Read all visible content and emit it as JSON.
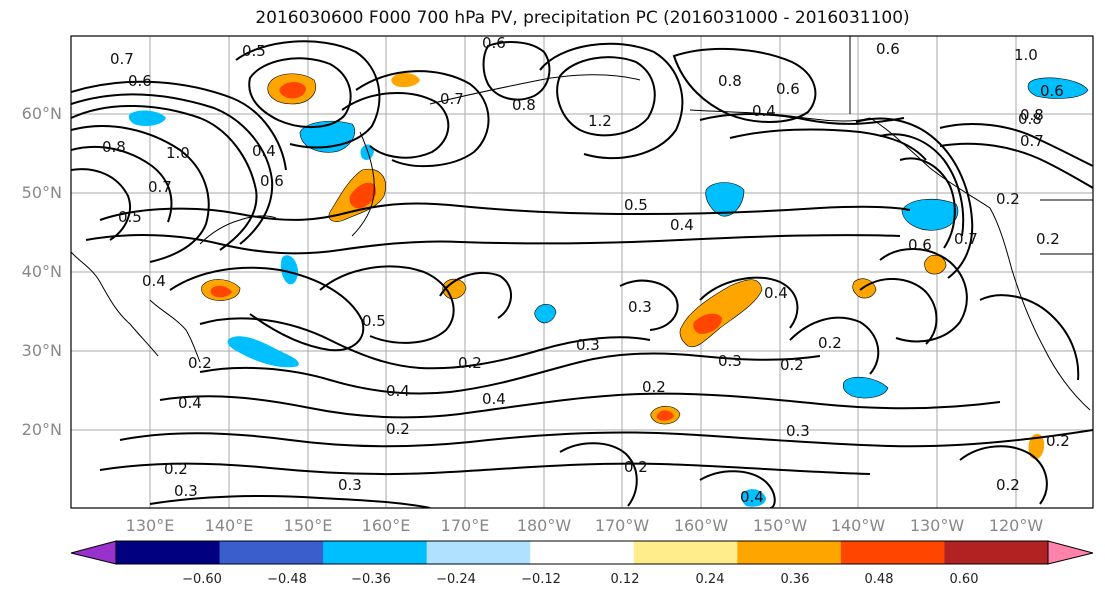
{
  "title": "2016030600 F000 700 hPa PV, precipitation PC (2016031000 - 2016031100)",
  "lat_labels": [
    "60°N",
    "50°N",
    "40°N",
    "30°N",
    "20°N"
  ],
  "lon_labels": [
    "130°E",
    "140°E",
    "150°E",
    "160°E",
    "170°E",
    "180°W",
    "170°W",
    "160°W",
    "150°W",
    "140°W",
    "130°W",
    "120°W"
  ],
  "colorbar": {
    "ticks": [
      "−0.60",
      "−0.48",
      "−0.36",
      "−0.24",
      "−0.12",
      "0.12",
      "0.24",
      "0.36",
      "0.48",
      "0.60"
    ],
    "colors": [
      "#9932cc",
      "#000080",
      "#3a5fcd",
      "#00bfff",
      "#b0e2ff",
      "#ffffff",
      "#ffec8b",
      "#ffa500",
      "#ff4500",
      "#b22222",
      "#ff82ab"
    ]
  },
  "contour_labels": [
    "0.7",
    "0.6",
    "0.5",
    "0.6",
    "0.8",
    "1.2",
    "0.8",
    "0.4",
    "0.6",
    "1.0",
    "0.8",
    "1.0",
    "0.6",
    "0.8",
    "0.7",
    "0.4",
    "0.7",
    "0.6",
    "0.5",
    "0.5",
    "0.4",
    "0.4",
    "0.5",
    "0.3",
    "0.4",
    "0.3",
    "0.2",
    "0.3",
    "0.2",
    "0.2",
    "0.4",
    "0.4",
    "0.2",
    "0.2",
    "0.3",
    "0.2",
    "0.4",
    "0.2",
    "0.3",
    "0.2",
    "0.4",
    "0.3",
    "0.2",
    "0.6",
    "0.8",
    "0.7",
    "0.2",
    "0.6",
    "0.2",
    "0.7",
    "0.2"
  ],
  "precip_anomalies": [
    {
      "color": "#ffa500"
    },
    {
      "color": "#ff4500"
    },
    {
      "color": "#00bfff"
    },
    {
      "color": "#00bfff"
    },
    {
      "color": "#ffa500"
    },
    {
      "color": "#ff4500"
    },
    {
      "color": "#00bfff"
    },
    {
      "color": "#ffa500"
    },
    {
      "color": "#ff4500"
    },
    {
      "color": "#00bfff"
    },
    {
      "color": "#00bfff"
    },
    {
      "color": "#ffa500"
    },
    {
      "color": "#ff4500"
    },
    {
      "color": "#ffa500"
    },
    {
      "color": "#00bfff"
    },
    {
      "color": "#00bfff"
    },
    {
      "color": "#ffa500"
    },
    {
      "color": "#ff4500"
    },
    {
      "color": "#00bfff"
    },
    {
      "color": "#ffa500"
    },
    {
      "color": "#ffa500"
    },
    {
      "color": "#00bfff"
    },
    {
      "color": "#00bfff"
    },
    {
      "color": "#ffa500"
    },
    {
      "color": "#00bfff"
    },
    {
      "color": "#ffa500"
    }
  ]
}
